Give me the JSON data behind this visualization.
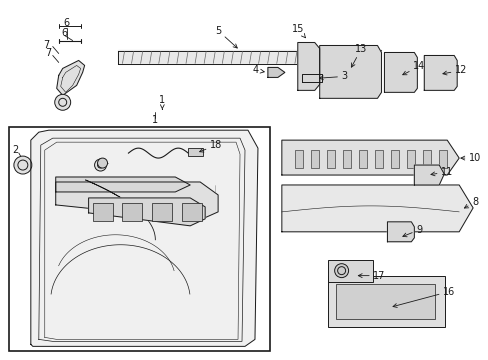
{
  "bg_color": "#ffffff",
  "line_color": "#1a1a1a",
  "fig_width": 4.89,
  "fig_height": 3.6,
  "dpi": 100,
  "label_fs": 7.0,
  "lw": 0.7
}
